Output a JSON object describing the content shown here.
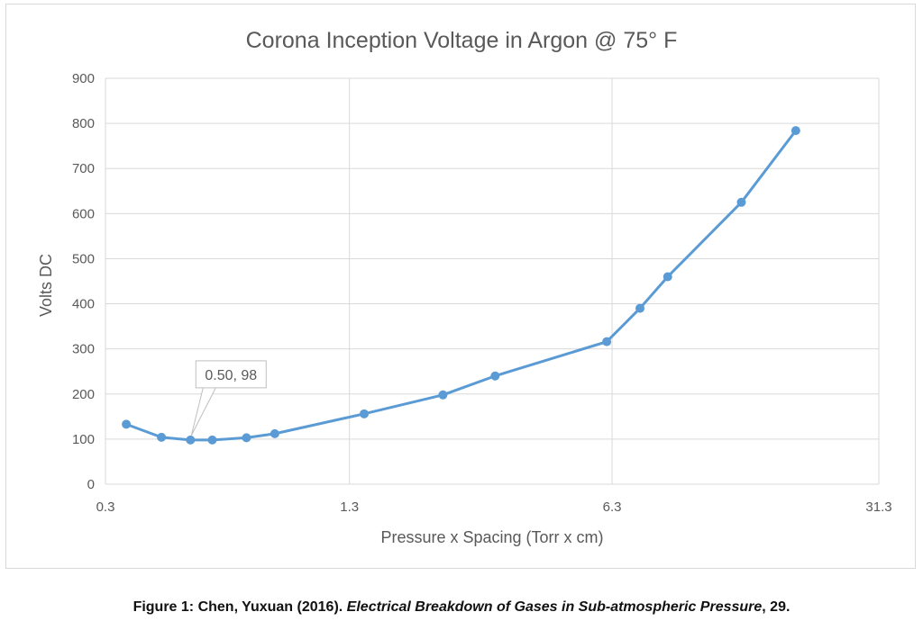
{
  "chart_data": {
    "type": "line",
    "title": "Corona Inception Voltage in Argon @ 75° F",
    "xlabel": "Pressure x Spacing (Torr x cm)",
    "ylabel": "Volts DC",
    "x_scale": "log",
    "xlim": [
      0.3,
      31.3
    ],
    "ylim": [
      0,
      900
    ],
    "x_ticks": [
      0.3,
      1.3,
      6.3,
      31.3
    ],
    "x_tick_labels": [
      "0.3",
      "1.3",
      "6.3",
      "31.3"
    ],
    "y_ticks": [
      0,
      100,
      200,
      300,
      400,
      500,
      600,
      700,
      800,
      900
    ],
    "y_tick_labels": [
      "0",
      "100",
      "200",
      "300",
      "400",
      "500",
      "600",
      "700",
      "800",
      "900"
    ],
    "grid": true,
    "legend": "none",
    "series": [
      {
        "color": "#5b9bd5",
        "x": [
          0.34,
          0.42,
          0.5,
          0.57,
          0.7,
          0.83,
          1.42,
          2.28,
          3.12,
          6.1,
          7.45,
          8.8,
          13.7,
          19.0
        ],
        "y": [
          133,
          104,
          98,
          98,
          103,
          112,
          156,
          198,
          240,
          316,
          390,
          460,
          625,
          784
        ]
      }
    ],
    "annotations": [
      {
        "text": "0.50, 98",
        "x": 0.5,
        "y": 98
      }
    ]
  },
  "caption": {
    "prefix": "Figure 1: Chen, Yuxuan (2016). ",
    "italic": "Electrical Breakdown of Gases in Sub-atmospheric Pressure",
    "suffix": ", 29."
  }
}
